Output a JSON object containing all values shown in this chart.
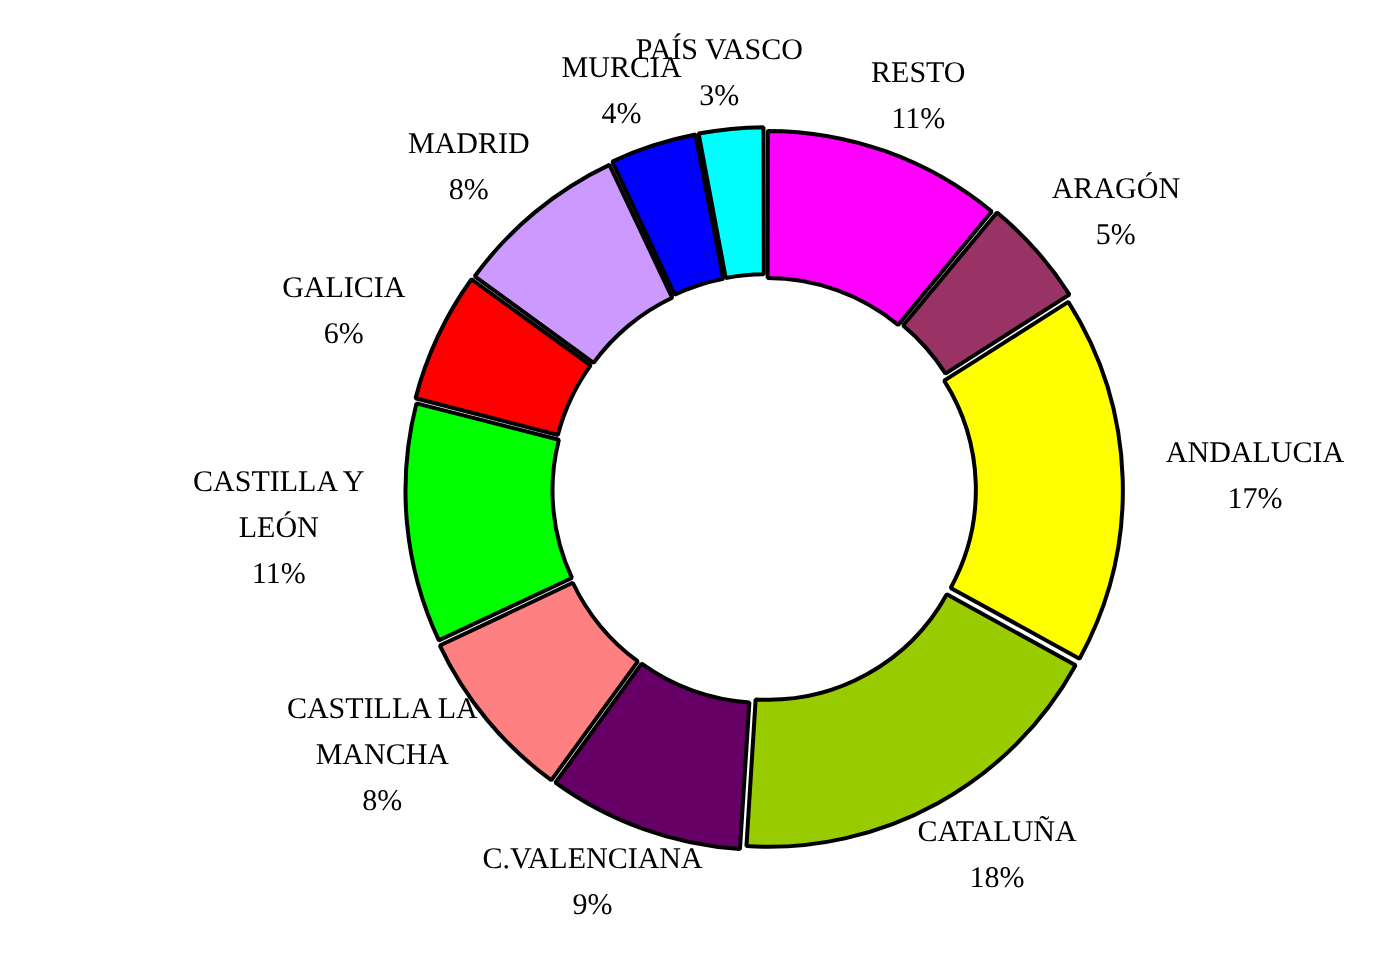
{
  "chart_data": {
    "type": "donut",
    "categories": [
      "RESTO",
      "ARAGÓN",
      "ANDALUCIA",
      "CATALUÑA",
      "C.VALENCIANA",
      "CASTILLA LA MANCHA",
      "CASTILLA Y LEÓN",
      "GALICIA",
      "MADRID",
      "MURCIA",
      "PAÍS VASCO"
    ],
    "values": [
      11,
      5,
      17,
      18,
      9,
      8,
      11,
      6,
      8,
      4,
      3
    ],
    "value_labels": [
      "11%",
      "5%",
      "17%",
      "18%",
      "9%",
      "8%",
      "11%",
      "6%",
      "8%",
      "4%",
      "3%"
    ],
    "colors": [
      "#ff00ff",
      "#993366",
      "#ffff00",
      "#99cc00",
      "#660066",
      "#ff8080",
      "#00ff00",
      "#ff0000",
      "#cc99ff",
      "#0000ff",
      "#00ffff"
    ],
    "legend": false
  }
}
